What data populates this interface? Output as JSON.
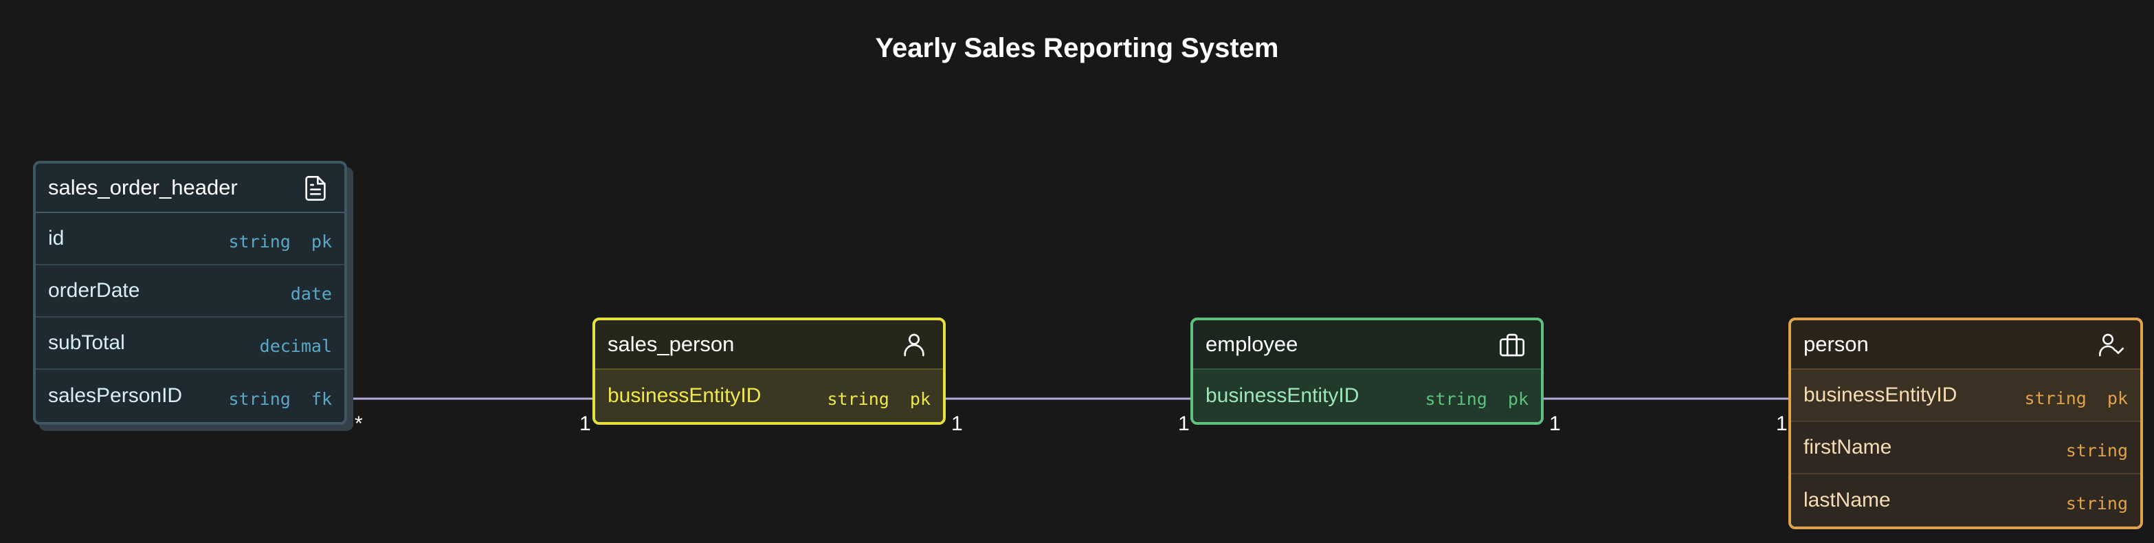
{
  "title": "Yearly Sales Reporting System",
  "colors": {
    "background": "#181818",
    "link": "#b5acd8",
    "sales_order_header": "#3d5763",
    "sales_person": "#e8e03c",
    "employee": "#5dc27e",
    "person": "#e0a24c"
  },
  "entities": {
    "sales_order_header": {
      "name": "sales_order_header",
      "icon": "document-icon",
      "fields": [
        {
          "name": "id",
          "type": "string  pk"
        },
        {
          "name": "orderDate",
          "type": "date"
        },
        {
          "name": "subTotal",
          "type": "decimal"
        },
        {
          "name": "salesPersonID",
          "type": "string  fk"
        }
      ]
    },
    "sales_person": {
      "name": "sales_person",
      "icon": "user-icon",
      "fields": [
        {
          "name": "businessEntityID",
          "type": "string  pk"
        }
      ]
    },
    "employee": {
      "name": "employee",
      "icon": "briefcase-icon",
      "fields": [
        {
          "name": "businessEntityID",
          "type": "string  pk"
        }
      ]
    },
    "person": {
      "name": "person",
      "icon": "user-check-icon",
      "fields": [
        {
          "name": "businessEntityID",
          "type": "string  pk"
        },
        {
          "name": "firstName",
          "type": "string"
        },
        {
          "name": "lastName",
          "type": "string"
        }
      ]
    }
  },
  "relationships": [
    {
      "from": "sales_order_header",
      "to": "sales_person",
      "from_mult": "*",
      "to_mult": "1"
    },
    {
      "from": "sales_person",
      "to": "employee",
      "from_mult": "1",
      "to_mult": "1"
    },
    {
      "from": "employee",
      "to": "person",
      "from_mult": "1",
      "to_mult": "1"
    }
  ]
}
